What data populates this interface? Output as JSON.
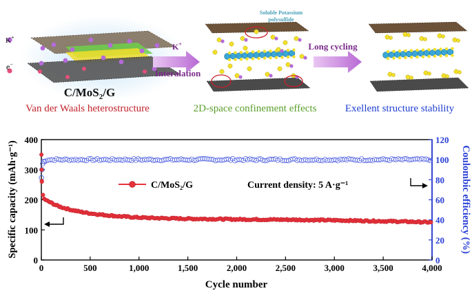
{
  "schematic": {
    "ion_k": "K",
    "ion_k_sup": "+",
    "electron": "e",
    "electron_sup": "−",
    "material_prefix": "C/MoS",
    "material_sub": "2",
    "material_suffix": "/G",
    "panel1_caption": "Van der Waals heterostructure",
    "arrow1_top_k": "K",
    "arrow1_top_sup": "+",
    "arrow1_bottom": "Interalation",
    "panel2_label_line1": "Soluble Potassium",
    "panel2_label_line2": "polysulfide",
    "panel2_caption": "2D-space confinement effects",
    "arrow2_label": "Long cycling",
    "panel3_caption": "Exellent structure stability",
    "colors": {
      "caption1": "#c0222a",
      "caption2": "#5a9e2a",
      "caption3": "#1f3fd0",
      "polysulfide_label": "#4a9fb8",
      "arrow_fill": "#c47fd8",
      "sulfur": "#f2e02a",
      "potassium": "#b46ad8",
      "mos2": "#3aa6d6",
      "graphene": "#4a4a4a",
      "carbon_sheet": "#7a5a3a"
    }
  },
  "chart_data": {
    "type": "scatter",
    "xlabel": "Cycle number",
    "ylabel_left": "Specific capacity (mAh·g⁻¹)",
    "ylabel_right": "Coulombic efficiency (%)",
    "xlim": [
      0,
      4000
    ],
    "ylim_left": [
      0,
      400
    ],
    "ylim_right": [
      0,
      120
    ],
    "x_ticks": [
      0,
      500,
      1000,
      1500,
      2000,
      2500,
      3000,
      3500,
      4000
    ],
    "x_tick_labels": [
      "0",
      "500",
      "1,000",
      "1,500",
      "2,000",
      "2,500",
      "3,000",
      "3,500",
      "4,000"
    ],
    "y_left_ticks": [
      0,
      100,
      200,
      300,
      400
    ],
    "y_left_tick_labels": [
      "0",
      "100",
      "200",
      "300",
      "400"
    ],
    "y_right_ticks": [
      0,
      20,
      40,
      60,
      80,
      100,
      120
    ],
    "y_right_tick_labels": [
      "0",
      "20",
      "40",
      "60",
      "80",
      "100",
      "120"
    ],
    "legend_label": "C/MoS₂/G",
    "annotation": "Current density: 5 A·g⁻¹",
    "grid": false,
    "series": [
      {
        "name": "C/MoS₂/G",
        "axis": "left",
        "marker": "filled-circle",
        "color": "#e8323c",
        "x": [
          1,
          5,
          20,
          50,
          100,
          150,
          200,
          300,
          400,
          500,
          600,
          800,
          1000,
          1200,
          1500,
          1800,
          2000,
          2500,
          3000,
          3500,
          3800,
          4000
        ],
        "y": [
          350,
          260,
          205,
          198,
          190,
          182,
          176,
          167,
          160,
          155,
          151,
          145,
          141,
          139,
          137,
          136,
          135,
          134,
          132,
          129,
          127,
          125
        ]
      },
      {
        "name": "Coulombic efficiency",
        "axis": "right",
        "marker": "open-circle",
        "color": "#4a5be0",
        "x": [
          1,
          5,
          15,
          30,
          60,
          100,
          500,
          1000,
          2000,
          3000,
          4000
        ],
        "y": [
          82,
          92,
          97,
          99,
          100,
          100,
          100,
          100,
          100,
          100,
          100
        ]
      }
    ]
  }
}
